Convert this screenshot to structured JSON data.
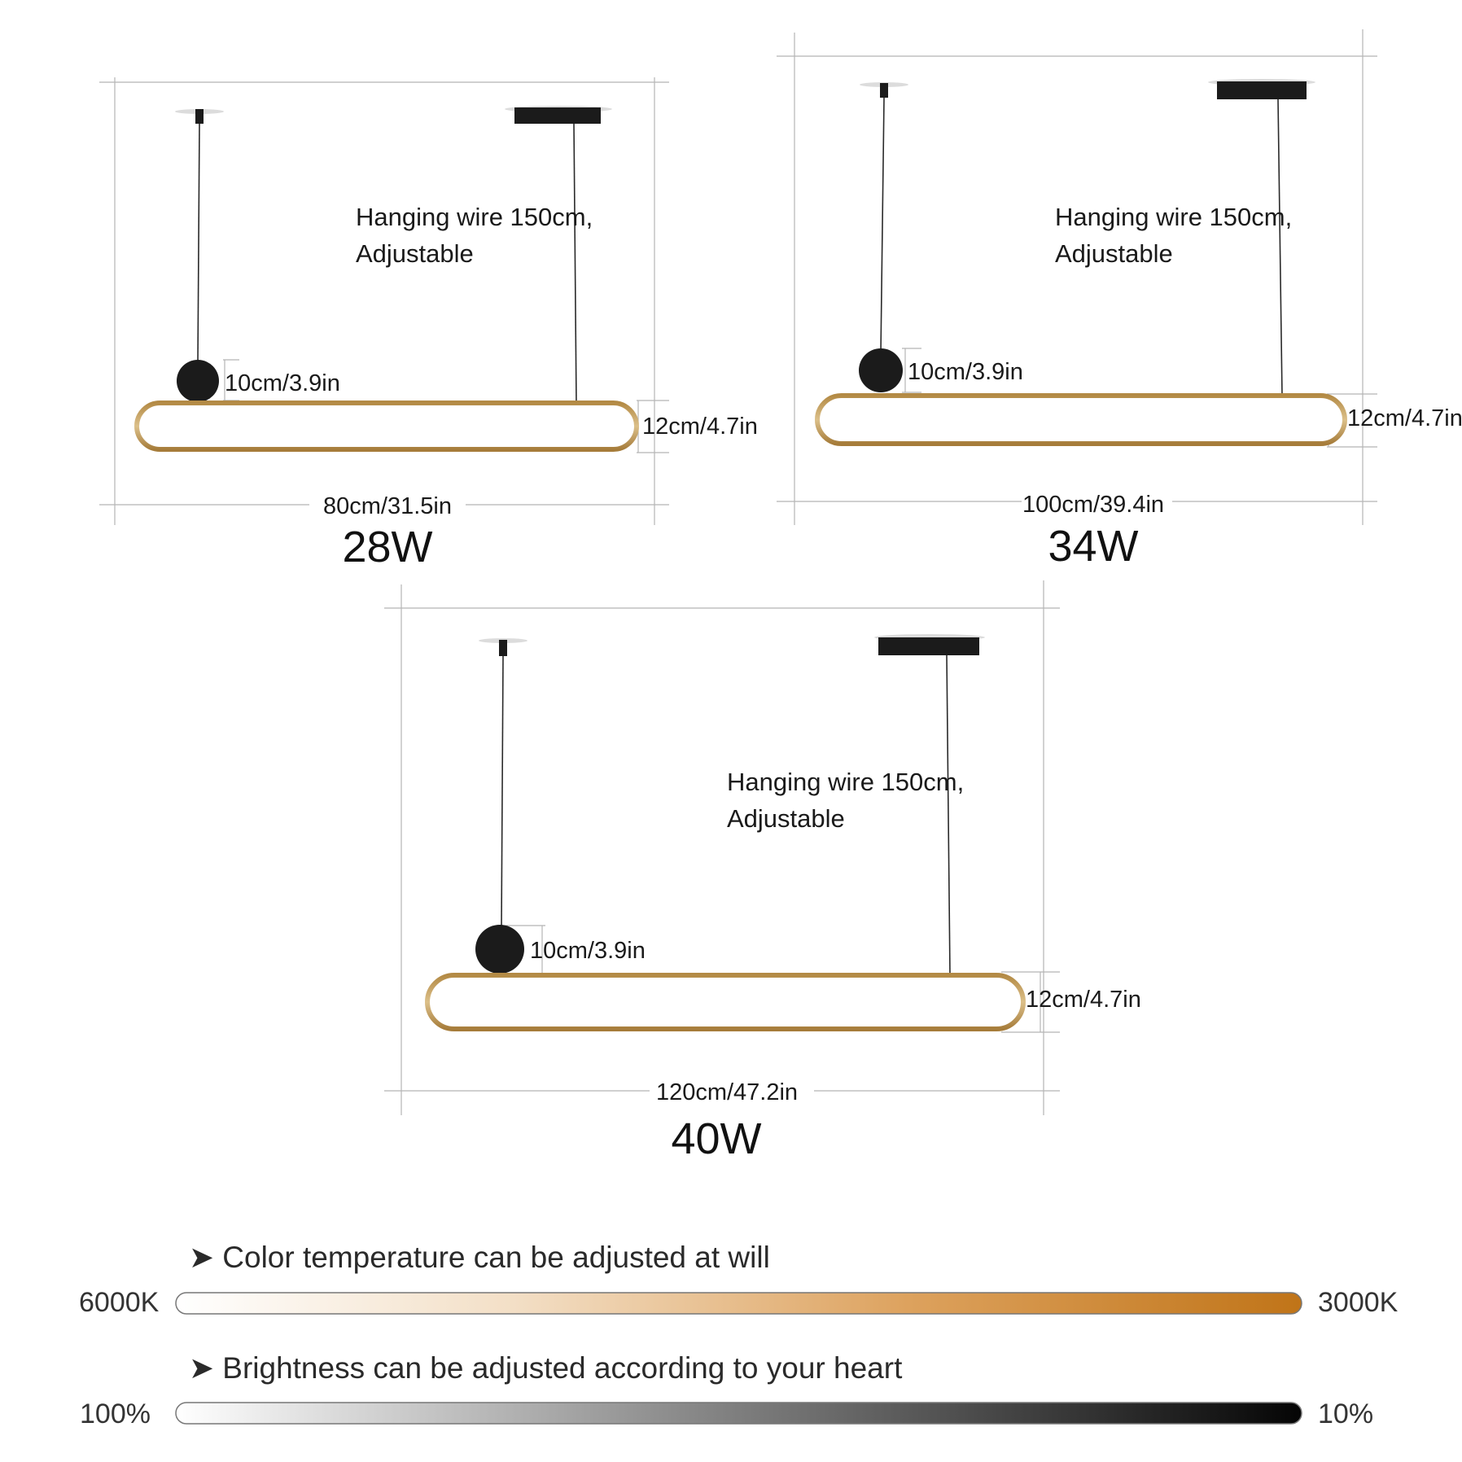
{
  "colors": {
    "gold": "#c9a35f",
    "black": "#1b1b1b",
    "guide": "#b5b5b5",
    "warm_end": "#c07418",
    "warm_start": "#ffffff"
  },
  "fixtures": [
    {
      "wattage": "28W",
      "wire_note_line1": "Hanging wire 150cm,",
      "wire_note_line2": "Adjustable",
      "ball_label": "10cm/3.9in",
      "height_label": "12cm/4.7in",
      "length_label": "80cm/31.5in"
    },
    {
      "wattage": "34W",
      "wire_note_line1": "Hanging wire 150cm,",
      "wire_note_line2": "Adjustable",
      "ball_label": "10cm/3.9in",
      "height_label": "12cm/4.7in",
      "length_label": "100cm/39.4in"
    },
    {
      "wattage": "40W",
      "wire_note_line1": "Hanging wire 150cm,",
      "wire_note_line2": "Adjustable",
      "ball_label": "10cm/3.9in",
      "height_label": "12cm/4.7in",
      "length_label": "120cm/47.2in"
    }
  ],
  "color_temperature": {
    "title": "➤ Color temperature can be adjusted at will",
    "left_label": "6000K",
    "right_label": "3000K"
  },
  "brightness": {
    "title": "➤ Brightness can be adjusted according to your heart",
    "left_label": "100%",
    "right_label": "10%"
  }
}
